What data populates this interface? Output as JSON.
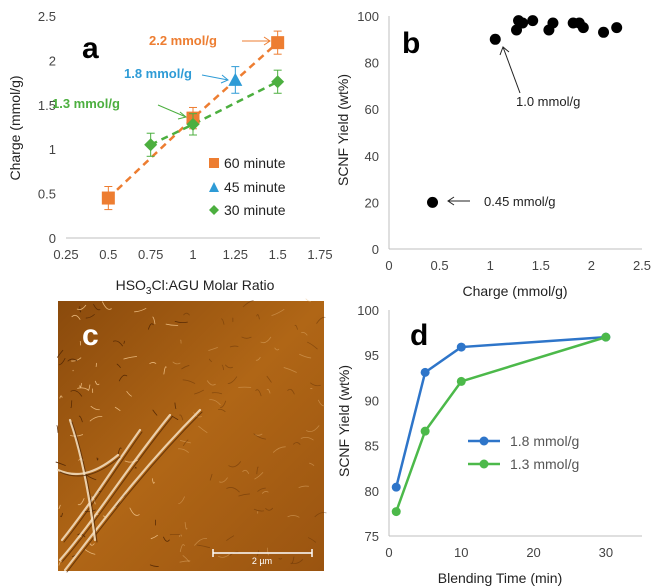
{
  "chart_data": [
    {
      "panel": "a",
      "type": "scatter",
      "xlabel": "HSO3Cl:AGU Molar Ratio",
      "xlabel_parts": [
        "HSO",
        "3",
        "Cl:AGU Molar Ratio"
      ],
      "ylabel": "Charge (mmol/g)",
      "xlim": [
        0.25,
        1.75
      ],
      "ylim": [
        0,
        2.5
      ],
      "xticks": [
        0.25,
        0.5,
        0.75,
        1,
        1.25,
        1.5,
        1.75
      ],
      "yticks": [
        0,
        0.5,
        1,
        1.5,
        2,
        2.5
      ],
      "grid": false,
      "legend_position": "bottom-right",
      "series": [
        {
          "name": "60 minute",
          "marker": "square",
          "color": "#ED7D31",
          "x": [
            0.5,
            1.0,
            1.5
          ],
          "y": [
            0.45,
            1.35,
            2.2
          ],
          "err": [
            0.13,
            0.12,
            0.13
          ]
        },
        {
          "name": "45 minute",
          "marker": "triangle",
          "color": "#2E9BD6",
          "x": [
            1.25
          ],
          "y": [
            1.78
          ],
          "err": [
            0.15
          ]
        },
        {
          "name": "30 minute",
          "marker": "diamond",
          "color": "#4CAF3F",
          "x": [
            0.75,
            1.0,
            1.5
          ],
          "y": [
            1.05,
            1.28,
            1.76
          ],
          "err": [
            0.13,
            0.12,
            0.13
          ]
        }
      ],
      "annotations": [
        "2.2 mmol/g",
        "1.8 mmol/g",
        "1.3 mmol/g"
      ]
    },
    {
      "panel": "b",
      "type": "scatter",
      "xlabel": "Charge (mmol/g)",
      "ylabel": "SCNF Yield (wt%)",
      "xlim": [
        0,
        2.5
      ],
      "ylim": [
        0,
        100
      ],
      "xticks": [
        0,
        0.5,
        1,
        1.5,
        2,
        2.5
      ],
      "yticks": [
        0,
        20,
        40,
        60,
        80,
        100
      ],
      "grid": false,
      "series": [
        {
          "color": "#000000",
          "x": [
            0.43,
            1.05,
            1.26,
            1.28,
            1.32,
            1.42,
            1.58,
            1.62,
            1.82,
            1.88,
            1.92,
            2.12,
            2.25
          ],
          "y": [
            20,
            90,
            94,
            98,
            97,
            98,
            94,
            97,
            97,
            97,
            95,
            93,
            95
          ]
        }
      ],
      "annotations": [
        "1.0 mmol/g",
        "0.45 mmol/g"
      ]
    },
    {
      "panel": "d",
      "type": "line",
      "xlabel": "Blending Time (min)",
      "ylabel": "SCNF Yield (wt%)",
      "xlim": [
        0,
        35
      ],
      "ylim": [
        75,
        100
      ],
      "xticks": [
        0,
        10,
        20,
        30
      ],
      "yticks": [
        75,
        80,
        85,
        90,
        95,
        100
      ],
      "grid": false,
      "legend_position": "center-right",
      "series": [
        {
          "name": "1.8 mmol/g",
          "color": "#2E75C9",
          "x": [
            1,
            5,
            10,
            30
          ],
          "y": [
            80.4,
            93.1,
            95.9,
            97.0
          ]
        },
        {
          "name": "1.3 mmol/g",
          "color": "#4CB94A",
          "x": [
            1,
            5,
            10,
            30
          ],
          "y": [
            77.7,
            86.6,
            92.1,
            97.0
          ]
        }
      ]
    }
  ],
  "panel_labels": {
    "a": "a",
    "b": "b",
    "c": "c",
    "d": "d"
  },
  "afm_image": {
    "scale_label": "2 µm"
  }
}
